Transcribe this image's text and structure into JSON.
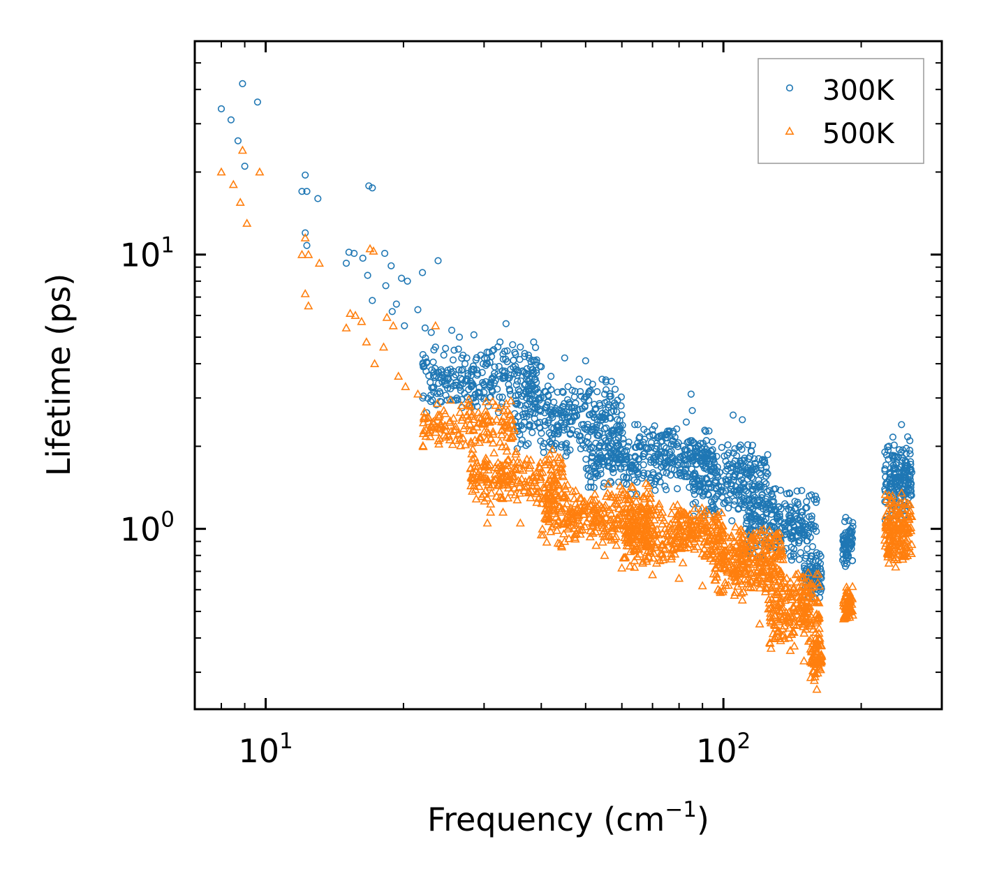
{
  "chart_data": {
    "type": "scatter",
    "xscale": "log",
    "yscale": "log",
    "xlim": [
      7.0,
      300
    ],
    "ylim": [
      0.22,
      60
    ],
    "xlabel": "Frequency (cm",
    "xlabel_sup": "−1",
    "xlabel_end": ")",
    "ylabel": "Lifetime (ps)",
    "x_ticks": [
      {
        "value": 10,
        "base": "10",
        "exp": "1"
      },
      {
        "value": 100,
        "base": "10",
        "exp": "2"
      }
    ],
    "y_ticks": [
      {
        "value": 1,
        "base": "10",
        "exp": "0"
      },
      {
        "value": 10,
        "base": "10",
        "exp": "1"
      }
    ],
    "legend_position": "top-right",
    "series": [
      {
        "name": "300K",
        "marker": "circle",
        "color": "#1f77b4",
        "points": [
          [
            8.0,
            34
          ],
          [
            8.4,
            31
          ],
          [
            8.7,
            26
          ],
          [
            8.9,
            42
          ],
          [
            9.0,
            21
          ],
          [
            9.6,
            36
          ],
          [
            12.0,
            17
          ],
          [
            12.2,
            19.5
          ],
          [
            12.3,
            17
          ],
          [
            12.2,
            12
          ],
          [
            12.3,
            10.8
          ],
          [
            13.0,
            16
          ],
          [
            15.0,
            9.3
          ],
          [
            15.2,
            10.2
          ],
          [
            15.6,
            10.1
          ],
          [
            16.3,
            9.7
          ],
          [
            16.7,
            8.4
          ],
          [
            16.8,
            17.8
          ],
          [
            17.1,
            17.5
          ],
          [
            17.1,
            6.8
          ],
          [
            18.2,
            10.1
          ],
          [
            18.3,
            7.7
          ],
          [
            18.8,
            9.1
          ],
          [
            18.9,
            6.2
          ],
          [
            19.3,
            6.6
          ],
          [
            19.8,
            8.2
          ],
          [
            20.1,
            5.5
          ],
          [
            20.4,
            8.0
          ],
          [
            21.5,
            6.3
          ],
          [
            22.0,
            8.6
          ],
          [
            22.3,
            5.4
          ],
          [
            23.0,
            5.2
          ],
          [
            23.8,
            9.5
          ],
          [
            23.5,
            4.6
          ],
          [
            24.5,
            4.3
          ],
          [
            25.5,
            5.3
          ],
          [
            26.5,
            5.0
          ],
          [
            27.5,
            4.2
          ],
          [
            28.5,
            5.1
          ],
          [
            29.5,
            4.3
          ],
          [
            30.5,
            4.0
          ],
          [
            31.5,
            4.5
          ],
          [
            32.5,
            4.8
          ],
          [
            33.5,
            5.6
          ],
          [
            35.0,
            4.4
          ],
          [
            36.0,
            4.6
          ],
          [
            37.5,
            4.3
          ],
          [
            38.5,
            4.8
          ],
          [
            40.0,
            3.9
          ],
          [
            42.0,
            3.6
          ],
          [
            45.0,
            4.2
          ],
          [
            50.0,
            4.1
          ],
          [
            55.0,
            3.1
          ],
          [
            60.0,
            2.6
          ],
          [
            65.0,
            2.4
          ],
          [
            70.0,
            2.3
          ],
          [
            75.0,
            2.2
          ],
          [
            85.0,
            3.1
          ],
          [
            85.5,
            2.7
          ],
          [
            88.0,
            2.0
          ],
          [
            95.0,
            1.8
          ],
          [
            105.0,
            2.6
          ],
          [
            110.0,
            2.5
          ],
          [
            120.0,
            1.6
          ],
          [
            130.0,
            1.4
          ],
          [
            140.0,
            1.2
          ],
          [
            150.0,
            0.95
          ],
          [
            160.0,
            0.8
          ],
          [
            185.0,
            1.1
          ],
          [
            188.0,
            0.85
          ],
          [
            230.0,
            2.0
          ],
          [
            245.0,
            2.4
          ],
          [
            250.0,
            1.6
          ]
        ],
        "clusters": [
          {
            "x": [
              22,
              40
            ],
            "y": [
              2.6,
              4.8
            ],
            "n": 260
          },
          {
            "x": [
              35,
              60
            ],
            "y": [
              1.8,
              3.6
            ],
            "n": 300
          },
          {
            "x": [
              50,
              95
            ],
            "y": [
              1.3,
              2.5
            ],
            "n": 380
          },
          {
            "x": [
              85,
              125
            ],
            "y": [
              1.05,
              2.1
            ],
            "n": 260
          },
          {
            "x": [
              110,
              160
            ],
            "y": [
              0.75,
              1.45
            ],
            "n": 240
          },
          {
            "x": [
              150,
              164
            ],
            "y": [
              0.55,
              0.85
            ],
            "n": 80
          },
          {
            "x": [
              182,
              192
            ],
            "y": [
              0.7,
              1.1
            ],
            "n": 70
          },
          {
            "x": [
              225,
              258
            ],
            "y": [
              1.05,
              2.2
            ],
            "n": 170
          }
        ]
      },
      {
        "name": "500K",
        "marker": "triangle",
        "color": "#ff7f0e",
        "points": [
          [
            8.0,
            20
          ],
          [
            8.5,
            18
          ],
          [
            8.8,
            15.5
          ],
          [
            8.9,
            24
          ],
          [
            9.1,
            13
          ],
          [
            9.7,
            20
          ],
          [
            12.0,
            10
          ],
          [
            12.2,
            11.5
          ],
          [
            12.4,
            10
          ],
          [
            12.2,
            7.2
          ],
          [
            12.4,
            6.5
          ],
          [
            13.1,
            9.3
          ],
          [
            15.0,
            5.4
          ],
          [
            15.3,
            6.1
          ],
          [
            15.7,
            6.0
          ],
          [
            16.2,
            5.7
          ],
          [
            16.6,
            4.8
          ],
          [
            16.9,
            10.5
          ],
          [
            17.2,
            10.3
          ],
          [
            17.3,
            4.0
          ],
          [
            18.1,
            4.6
          ],
          [
            18.4,
            5.9
          ],
          [
            19.0,
            5.5
          ],
          [
            19.5,
            3.6
          ],
          [
            20.2,
            3.3
          ],
          [
            21.5,
            3.1
          ],
          [
            23.5,
            5.5
          ],
          [
            24.0,
            2.6
          ],
          [
            26.0,
            2.3
          ],
          [
            28.0,
            2.8
          ],
          [
            30.5,
            1.05
          ],
          [
            31.0,
            1.15
          ],
          [
            33.0,
            1.15
          ],
          [
            36.0,
            1.05
          ],
          [
            40.0,
            0.95
          ],
          [
            45.0,
            0.9
          ],
          [
            55.0,
            0.8
          ],
          [
            60.0,
            0.72
          ],
          [
            70.0,
            0.68
          ],
          [
            80.0,
            0.66
          ],
          [
            90.0,
            0.62
          ],
          [
            100.0,
            0.6
          ],
          [
            110.0,
            0.55
          ],
          [
            120.0,
            0.45
          ],
          [
            130.0,
            0.4
          ],
          [
            140.0,
            0.36
          ],
          [
            150.0,
            0.33
          ],
          [
            158.0,
            0.28
          ],
          [
            160.0,
            0.26
          ],
          [
            185.0,
            0.48
          ],
          [
            230.0,
            0.75
          ],
          [
            245.0,
            1.35
          ]
        ],
        "clusters": [
          {
            "x": [
              22,
              35
            ],
            "y": [
              1.9,
              3.0
            ],
            "n": 150
          },
          {
            "x": [
              28,
              45
            ],
            "y": [
              1.2,
              2.0
            ],
            "n": 220
          },
          {
            "x": [
              40,
              70
            ],
            "y": [
              0.85,
              1.5
            ],
            "n": 320
          },
          {
            "x": [
              60,
              100
            ],
            "y": [
              0.72,
              1.25
            ],
            "n": 340
          },
          {
            "x": [
              95,
              135
            ],
            "y": [
              0.55,
              1.05
            ],
            "n": 300
          },
          {
            "x": [
              125,
              163
            ],
            "y": [
              0.36,
              0.72
            ],
            "n": 220
          },
          {
            "x": [
              155,
              164
            ],
            "y": [
              0.27,
              0.42
            ],
            "n": 60
          },
          {
            "x": [
              183,
              192
            ],
            "y": [
              0.45,
              0.62
            ],
            "n": 60
          },
          {
            "x": [
              225,
              258
            ],
            "y": [
              0.72,
              1.35
            ],
            "n": 170
          }
        ]
      }
    ]
  }
}
